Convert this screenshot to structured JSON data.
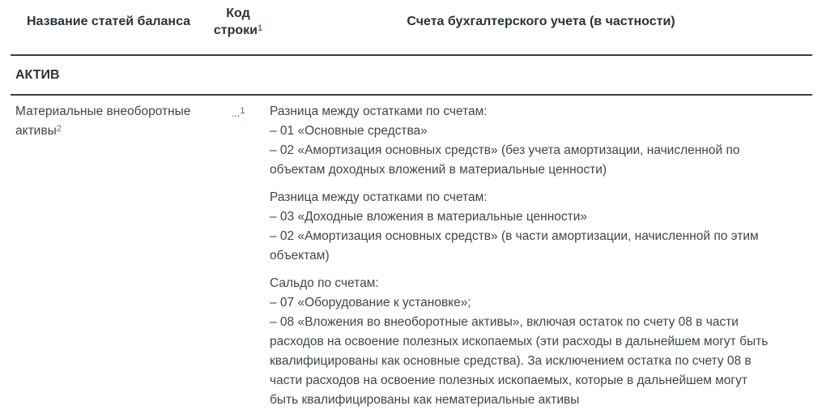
{
  "table": {
    "columns": [
      {
        "label": "Название статей баланса"
      },
      {
        "label": "Код строки",
        "footnote": "1"
      },
      {
        "label": "Счета бухгалтерского учета (в частности)"
      }
    ],
    "sections": [
      {
        "title": "АКТИВ"
      }
    ],
    "rows": [
      {
        "name": "Материальные внеоборотные активы",
        "name_footnote": "2",
        "code": "...",
        "code_footnote": "1",
        "accounts": [
          {
            "intro": "Разница между остатками по счетам:",
            "items": [
              "– 01 «Основные средства»",
              "– 02 «Амортизация основных средств» (без учета амортизации, начисленной по объектам доходных вложений в материальные ценности)"
            ]
          },
          {
            "intro": "Разница между остатками по счетам:",
            "items": [
              "– 03 «Доходные вложения в материальные ценности»",
              "– 02 «Амортизация основных средств» (в части амортизации, начисленной по этим объектам)"
            ]
          },
          {
            "intro": "Сальдо по счетам:",
            "items": [
              "– 07 «Оборудование к установке»;",
              "– 08 «Вложения во внеоборотные активы», включая остаток по счету 08 в части расходов на освоение полезных ископаемых (эти расходы в дальнейшем могут быть квалифицированы как основные средства). За исключением остатка по счету 08 в части расходов на освоение полезных ископаемых, которые в дальнейшем могут быть квалифицированы как нематериальные активы"
            ]
          }
        ]
      }
    ],
    "colors": {
      "heading_text": "#2d323a",
      "body_text": "#40464e",
      "footnote_link": "#4a6db8",
      "rule": "#3a3f45",
      "background": "#ffffff"
    }
  }
}
